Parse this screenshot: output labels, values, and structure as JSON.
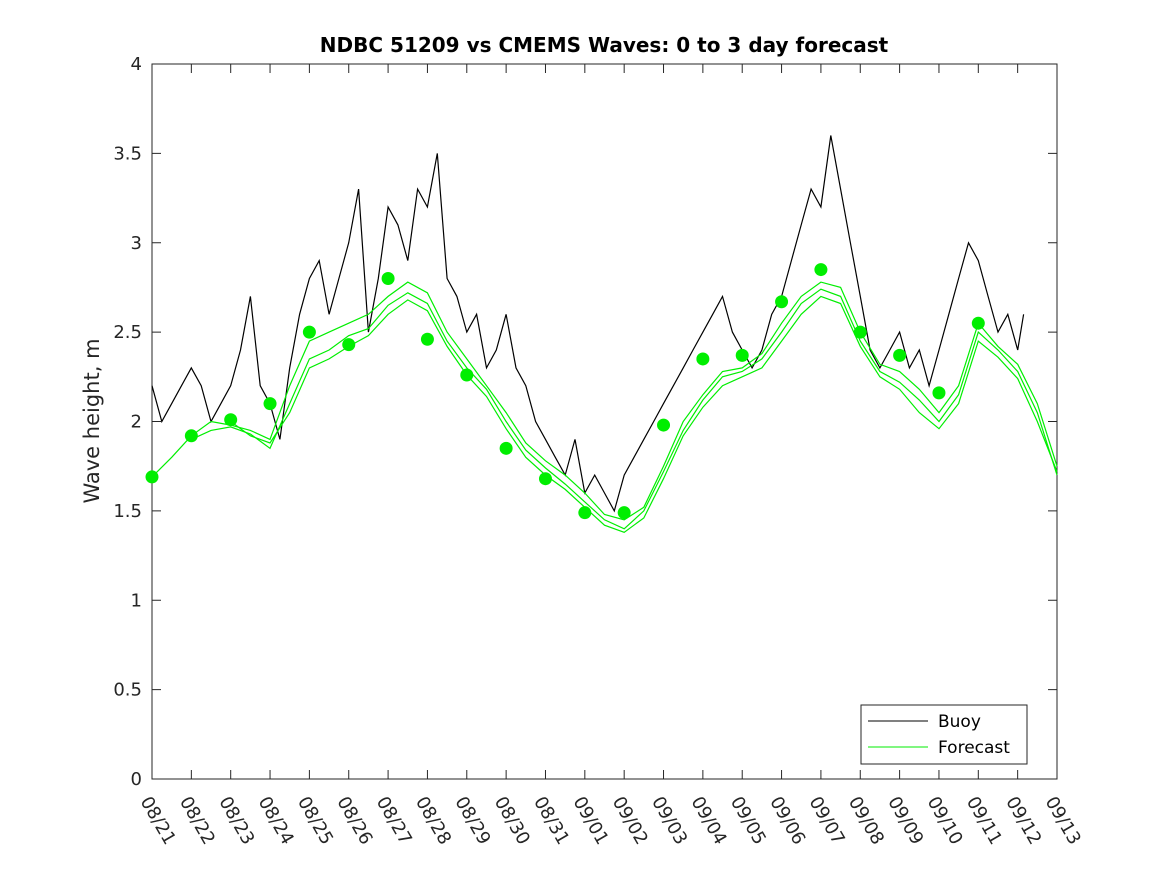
{
  "chart_data": {
    "type": "line",
    "title": "NDBC 51209 vs CMEMS Waves: 0 to 3 day forecast",
    "xlabel": "",
    "ylabel": "Wave height, m",
    "ylim": [
      0,
      4
    ],
    "yticks": [
      "0",
      "0.5",
      "1",
      "1.5",
      "2",
      "2.5",
      "3",
      "3.5",
      "4"
    ],
    "xticks": [
      "08/21",
      "08/22",
      "08/23",
      "08/24",
      "08/25",
      "08/26",
      "08/27",
      "08/28",
      "08/29",
      "08/30",
      "08/31",
      "09/01",
      "09/02",
      "09/03",
      "09/04",
      "09/05",
      "09/06",
      "09/07",
      "09/08",
      "09/09",
      "09/10",
      "09/11",
      "09/12",
      "09/13"
    ],
    "xlim": [
      0,
      23
    ],
    "grid": false,
    "legend_position": "bottom-right",
    "colors": {
      "buoy": "#000000",
      "forecast": "#00ee00"
    },
    "series": [
      {
        "name": "Buoy",
        "x": [
          0.0,
          0.25,
          0.5,
          0.75,
          1.0,
          1.25,
          1.5,
          1.75,
          2.0,
          2.25,
          2.5,
          2.75,
          3.0,
          3.25,
          3.5,
          3.75,
          4.0,
          4.25,
          4.5,
          4.75,
          5.0,
          5.25,
          5.5,
          5.75,
          6.0,
          6.25,
          6.5,
          6.75,
          7.0,
          7.25,
          7.5,
          7.75,
          8.0,
          8.25,
          8.5,
          8.75,
          9.0,
          9.25,
          9.5,
          9.75,
          10.0,
          10.25,
          10.5,
          10.75,
          11.0,
          11.25,
          11.5,
          11.75,
          12.0,
          12.25,
          12.5,
          12.75,
          13.0,
          13.25,
          13.5,
          13.75,
          14.0,
          14.25,
          14.5,
          14.75,
          15.0,
          15.25,
          15.5,
          15.75,
          16.0,
          16.25,
          16.5,
          16.75,
          17.0,
          17.25,
          17.5,
          17.75,
          18.0,
          18.25,
          18.5,
          18.75,
          19.0,
          19.25,
          19.5,
          19.75,
          20.0,
          20.25,
          20.5,
          20.75,
          21.0,
          21.25,
          21.5,
          21.75,
          22.0,
          22.15
        ],
        "y": [
          2.2,
          2.0,
          2.1,
          2.2,
          2.3,
          2.2,
          2.0,
          2.1,
          2.2,
          2.4,
          2.7,
          2.2,
          2.1,
          1.9,
          2.3,
          2.6,
          2.8,
          2.9,
          2.6,
          2.8,
          3.0,
          3.3,
          2.5,
          2.8,
          3.2,
          3.1,
          2.9,
          3.3,
          3.2,
          3.5,
          2.8,
          2.7,
          2.5,
          2.6,
          2.3,
          2.4,
          2.6,
          2.3,
          2.2,
          2.0,
          1.9,
          1.8,
          1.7,
          1.9,
          1.6,
          1.7,
          1.6,
          1.5,
          1.7,
          1.8,
          1.9,
          2.0,
          2.1,
          2.2,
          2.3,
          2.4,
          2.5,
          2.6,
          2.7,
          2.5,
          2.4,
          2.3,
          2.4,
          2.6,
          2.7,
          2.9,
          3.1,
          3.3,
          3.2,
          3.6,
          3.3,
          3.0,
          2.7,
          2.4,
          2.3,
          2.4,
          2.5,
          2.3,
          2.4,
          2.2,
          2.4,
          2.6,
          2.8,
          3.0,
          2.9,
          2.7,
          2.5,
          2.6,
          2.4,
          2.6
        ]
      },
      {
        "name": "Forecast",
        "x": [
          0.0,
          0.5,
          1.0,
          1.5,
          2.0,
          2.5,
          3.0,
          3.5,
          4.0,
          4.5,
          5.0,
          5.5,
          6.0,
          6.5,
          7.0,
          7.5,
          8.0,
          8.5,
          9.0,
          9.5,
          10.0,
          10.5,
          11.0,
          11.5,
          12.0,
          12.5,
          13.0,
          13.5,
          14.0,
          14.5,
          15.0,
          15.5,
          16.0,
          16.5,
          17.0,
          17.5,
          18.0,
          18.5,
          19.0,
          19.5,
          20.0,
          20.5,
          21.0,
          21.5,
          22.0,
          22.5,
          23.0
        ],
        "y": [
          1.69,
          1.8,
          1.92,
          2.0,
          1.98,
          1.95,
          1.9,
          2.2,
          2.45,
          2.5,
          2.55,
          2.6,
          2.7,
          2.78,
          2.72,
          2.5,
          2.35,
          2.2,
          2.05,
          1.88,
          1.78,
          1.7,
          1.6,
          1.48,
          1.45,
          1.52,
          1.75,
          2.0,
          2.15,
          2.28,
          2.3,
          2.38,
          2.55,
          2.7,
          2.78,
          2.75,
          2.5,
          2.32,
          2.28,
          2.18,
          2.05,
          2.2,
          2.55,
          2.42,
          2.32,
          2.1,
          1.75
        ]
      },
      {
        "name": "Forecast",
        "x": [
          1.0,
          1.5,
          2.0,
          2.5,
          3.0,
          3.5,
          4.0,
          4.5,
          5.0,
          5.5,
          6.0,
          6.5,
          7.0,
          7.5,
          8.0,
          8.5,
          9.0,
          9.5,
          10.0,
          10.5,
          11.0,
          11.5,
          12.0,
          12.5,
          13.0,
          13.5,
          14.0,
          14.5,
          15.0,
          15.5,
          16.0,
          16.5,
          17.0,
          17.5,
          18.0,
          18.5,
          19.0,
          19.5,
          20.0,
          20.5,
          21.0,
          21.5,
          22.0,
          22.5,
          23.0
        ],
        "y": [
          1.9,
          1.95,
          1.97,
          1.93,
          1.85,
          2.1,
          2.35,
          2.4,
          2.48,
          2.52,
          2.65,
          2.72,
          2.66,
          2.45,
          2.3,
          2.18,
          2.0,
          1.84,
          1.74,
          1.65,
          1.55,
          1.45,
          1.4,
          1.5,
          1.72,
          1.95,
          2.12,
          2.25,
          2.28,
          2.35,
          2.5,
          2.66,
          2.74,
          2.7,
          2.45,
          2.28,
          2.22,
          2.12,
          2.0,
          2.15,
          2.5,
          2.4,
          2.28,
          2.05,
          1.7
        ]
      },
      {
        "name": "Forecast",
        "x": [
          2.0,
          2.5,
          3.0,
          3.5,
          4.0,
          4.5,
          5.0,
          5.5,
          6.0,
          6.5,
          7.0,
          7.5,
          8.0,
          8.5,
          9.0,
          9.5,
          10.0,
          10.5,
          11.0,
          11.5,
          12.0,
          12.5,
          13.0,
          13.5,
          14.0,
          14.5,
          15.0,
          15.5,
          16.0,
          16.5,
          17.0,
          17.5,
          18.0,
          18.5,
          19.0,
          19.5,
          20.0,
          20.5,
          21.0,
          21.5,
          22.0,
          22.5,
          23.0
        ],
        "y": [
          2.0,
          1.92,
          1.88,
          2.05,
          2.3,
          2.35,
          2.42,
          2.48,
          2.6,
          2.68,
          2.62,
          2.42,
          2.26,
          2.14,
          1.96,
          1.8,
          1.7,
          1.62,
          1.52,
          1.42,
          1.38,
          1.46,
          1.68,
          1.92,
          2.08,
          2.2,
          2.25,
          2.3,
          2.45,
          2.6,
          2.7,
          2.66,
          2.42,
          2.25,
          2.18,
          2.05,
          1.96,
          2.1,
          2.45,
          2.36,
          2.24,
          2.0,
          1.72
        ]
      }
    ],
    "markers": {
      "x": [
        0,
        1,
        2,
        3,
        4,
        5,
        6,
        7,
        8,
        9,
        10,
        11,
        12,
        13,
        14,
        15,
        16,
        17,
        18,
        19,
        20,
        21
      ],
      "y": [
        1.69,
        1.92,
        2.01,
        2.1,
        2.5,
        2.43,
        2.8,
        2.46,
        2.26,
        1.85,
        1.68,
        1.49,
        1.49,
        1.98,
        2.35,
        2.37,
        2.67,
        2.85,
        2.5,
        2.37,
        2.16,
        2.55
      ]
    },
    "legend": [
      "Buoy",
      "Forecast"
    ]
  }
}
